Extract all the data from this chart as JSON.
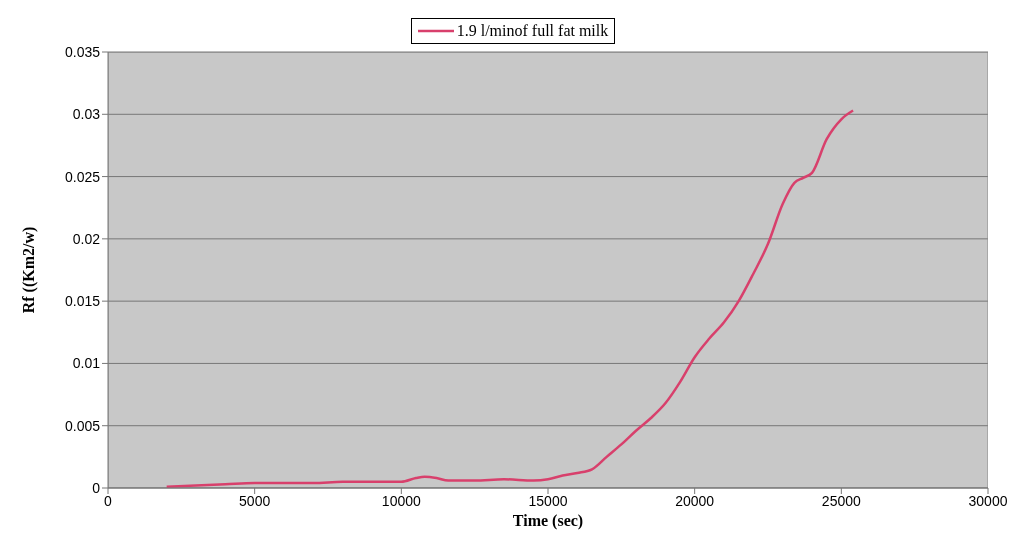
{
  "chart_data": {
    "type": "line",
    "xlabel": "Time (sec)",
    "ylabel": "Rf ((Km2/w)",
    "series": [
      {
        "name": "1.9 l/minof full fat milk",
        "color": "#d8406c",
        "x": [
          2000,
          3000,
          4000,
          5000,
          6000,
          7000,
          8000,
          9000,
          10000,
          10500,
          10800,
          11200,
          11600,
          12500,
          13500,
          14500,
          15000,
          15500,
          16000,
          16500,
          17000,
          17500,
          18000,
          18500,
          19000,
          19500,
          20000,
          20500,
          21000,
          21500,
          22000,
          22500,
          23000,
          23400,
          23700,
          24000,
          24500,
          25000,
          25400
        ],
        "values": [
          0.0001,
          0.0002,
          0.0003,
          0.0004,
          0.0004,
          0.0004,
          0.0005,
          0.0005,
          0.0005,
          0.0008,
          0.0009,
          0.0008,
          0.0006,
          0.0006,
          0.0007,
          0.0006,
          0.0007,
          0.001,
          0.0012,
          0.0015,
          0.0025,
          0.0035,
          0.0046,
          0.0056,
          0.0068,
          0.0085,
          0.0105,
          0.012,
          0.0133,
          0.015,
          0.0172,
          0.0196,
          0.0228,
          0.0245,
          0.0249,
          0.0253,
          0.028,
          0.0296,
          0.0303
        ]
      }
    ],
    "xlim": [
      0,
      30000
    ],
    "xticks": [
      0,
      5000,
      10000,
      15000,
      20000,
      25000,
      30000
    ],
    "ylim": [
      0,
      0.035
    ],
    "yticks": [
      0,
      0.005,
      0.01,
      0.015,
      0.02,
      0.025,
      0.03,
      0.035
    ],
    "grid": "y",
    "legend": "top",
    "marker": "none",
    "line_style": "solid"
  }
}
